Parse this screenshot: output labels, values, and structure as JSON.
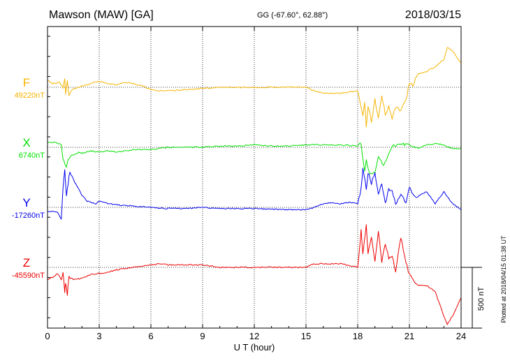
{
  "header": {
    "station": "Mawson (MAW)  [GA]",
    "coords": "GG (-67.60°,  62.88°)",
    "date": "2018/03/15"
  },
  "footer_note": "Plotted at 2018/04/15 01:38 UT",
  "scale_bar_label": "500 nT",
  "chart_data": {
    "type": "line",
    "xlabel": "U T (hour)",
    "xlim": [
      0,
      24
    ],
    "xticks": [
      "0",
      "3",
      "6",
      "9",
      "12",
      "15",
      "18",
      "21",
      "24"
    ],
    "scale_bar_nT": 500,
    "grid": "dotted",
    "series": [
      {
        "name": "F",
        "baseline": "49220nT",
        "color": "#f5b400",
        "ref_nT": 0,
        "x": [
          0,
          0.3,
          0.7,
          0.9,
          1.0,
          1.05,
          1.15,
          1.25,
          1.4,
          1.6,
          2.0,
          2.5,
          3.0,
          3.5,
          4.0,
          4.5,
          5.0,
          5.5,
          6.0,
          6.5,
          7.0,
          8.0,
          9.0,
          10,
          12,
          14,
          15,
          15.5,
          16,
          17,
          18.0,
          18.3,
          18.4,
          18.5,
          18.6,
          18.8,
          19.0,
          19.2,
          19.4,
          19.6,
          19.8,
          20.0,
          20.2,
          20.5,
          20.8,
          21.0,
          21.2,
          21.5,
          22.0,
          22.5,
          23.0,
          23.2,
          23.5,
          23.8,
          24.0
        ],
        "y": [
          60,
          30,
          40,
          0,
          80,
          -60,
          50,
          -80,
          -20,
          -10,
          10,
          30,
          50,
          30,
          20,
          40,
          30,
          10,
          -20,
          -30,
          -30,
          -20,
          -10,
          0,
          0,
          0,
          0,
          -30,
          -50,
          -50,
          -30,
          -230,
          -120,
          -320,
          -150,
          -280,
          -100,
          -260,
          -60,
          -220,
          -160,
          -270,
          -160,
          -190,
          -110,
          40,
          20,
          110,
          130,
          170,
          230,
          330,
          300,
          240,
          200
        ]
      },
      {
        "name": "X",
        "baseline": "6740nT",
        "color": "#00e000",
        "ref_nT": 0,
        "x": [
          0,
          0.5,
          0.8,
          0.9,
          1.0,
          1.1,
          1.2,
          1.4,
          1.6,
          1.8,
          2.0,
          2.5,
          3.0,
          3.5,
          4.0,
          5.0,
          6.0,
          7.0,
          8.0,
          9.0,
          10,
          11,
          12,
          13,
          14,
          15,
          16,
          17,
          18.0,
          18.2,
          18.4,
          18.5,
          18.7,
          19.0,
          19.2,
          19.5,
          20.0,
          20.5,
          21.0,
          21.5,
          22.0,
          22.5,
          23.0,
          23.5,
          24.0
        ],
        "y": [
          40,
          40,
          20,
          -100,
          -140,
          -160,
          -110,
          -70,
          -60,
          -40,
          -50,
          -30,
          -40,
          -30,
          -40,
          -20,
          -20,
          0,
          0,
          0,
          10,
          10,
          20,
          10,
          10,
          20,
          20,
          20,
          10,
          30,
          -200,
          -100,
          -230,
          -200,
          -80,
          -150,
          10,
          20,
          30,
          -10,
          20,
          30,
          20,
          -10,
          -10
        ]
      },
      {
        "name": "Y",
        "baseline": "-17260nT",
        "color": "#0000ee",
        "ref_nT": 0,
        "x": [
          0,
          0.6,
          0.8,
          0.9,
          1.0,
          1.1,
          1.2,
          1.3,
          1.5,
          1.8,
          2.0,
          2.3,
          2.8,
          3.0,
          3.5,
          4.0,
          5.0,
          6.0,
          7.0,
          8.0,
          9.0,
          10,
          12,
          14,
          15,
          15.5,
          16,
          16.5,
          17,
          17.5,
          18.0,
          18.2,
          18.3,
          18.5,
          18.6,
          18.8,
          19.0,
          19.2,
          19.4,
          19.6,
          19.8,
          20.0,
          20.2,
          20.5,
          20.8,
          21.0,
          21.2,
          21.5,
          22.0,
          22.5,
          23.0,
          23.5,
          24.0
        ],
        "y": [
          -30,
          -40,
          -100,
          150,
          300,
          100,
          200,
          300,
          230,
          150,
          100,
          50,
          30,
          50,
          30,
          20,
          10,
          0,
          -10,
          -10,
          0,
          -10,
          -10,
          -20,
          -20,
          0,
          30,
          40,
          30,
          40,
          30,
          150,
          330,
          150,
          290,
          200,
          290,
          100,
          200,
          30,
          150,
          130,
          30,
          110,
          30,
          170,
          100,
          90,
          130,
          30,
          130,
          30,
          -20
        ]
      },
      {
        "name": "Z",
        "baseline": "-45590nT",
        "color": "#ee0000",
        "ref_nT": 0,
        "x": [
          0,
          0.3,
          0.6,
          0.8,
          0.9,
          1.0,
          1.05,
          1.15,
          1.25,
          1.5,
          2.0,
          2.5,
          3.0,
          3.5,
          4.0,
          4.5,
          5.0,
          5.5,
          6.0,
          6.5,
          7.0,
          8.0,
          9.0,
          10,
          12,
          14,
          15,
          15.3,
          15.6,
          16,
          17,
          18.0,
          18.2,
          18.3,
          18.5,
          18.6,
          18.8,
          19.0,
          19.2,
          19.4,
          19.6,
          19.8,
          20.0,
          20.2,
          20.5,
          20.8,
          21.0,
          21.5,
          22.0,
          22.5,
          23.0,
          23.2,
          23.5,
          24.0
        ],
        "y": [
          -100,
          -80,
          -50,
          -100,
          -30,
          -200,
          -120,
          -220,
          -80,
          -100,
          -90,
          -60,
          -50,
          -40,
          -20,
          -10,
          0,
          10,
          20,
          30,
          20,
          20,
          20,
          0,
          0,
          0,
          0,
          20,
          30,
          30,
          30,
          0,
          300,
          100,
          350,
          100,
          260,
          50,
          300,
          50,
          200,
          80,
          100,
          -30,
          250,
          40,
          -60,
          -150,
          -150,
          -200,
          -400,
          -470,
          -400,
          -250
        ]
      }
    ]
  }
}
